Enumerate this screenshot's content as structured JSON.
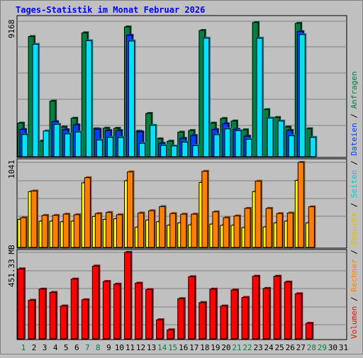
{
  "title": "Tages-Statistik im Monat Februar 2026",
  "colors": {
    "title": "#0000ff",
    "background": "#c0c0c0",
    "grid": "#7f7f7f",
    "anfragen": "#008040",
    "dateien": "#0040ff",
    "seiten": "#00e0ff",
    "besuche": "#ffff00",
    "rechner": "#ff8000",
    "volumen": "#ff0000",
    "weekend_label": "#008040",
    "weekday_label": "#000000"
  },
  "right_legend": {
    "sep": "/",
    "items": [
      {
        "key": "volumen",
        "label": "Volumen",
        "color": "#ff0000"
      },
      {
        "key": "rechner",
        "label": "Rechner",
        "color": "#ff8000"
      },
      {
        "key": "besuche",
        "label": "Besuche",
        "color": "#e0c000"
      },
      {
        "key": "seiten",
        "label": "Seiten",
        "color": "#00c8e0"
      },
      {
        "key": "dateien",
        "label": "Dateien",
        "color": "#0040ff"
      },
      {
        "key": "anfragen",
        "label": "Anfragen",
        "color": "#008040"
      }
    ]
  },
  "chart_data": {
    "type": "bar",
    "title": "Tages-Statistik im Monat Februar 2026",
    "categories": [
      "1",
      "2",
      "3",
      "4",
      "5",
      "6",
      "7",
      "8",
      "9",
      "10",
      "11",
      "12",
      "13",
      "14",
      "15",
      "16",
      "17",
      "18",
      "19",
      "20",
      "21",
      "22",
      "23",
      "24",
      "25",
      "26",
      "27",
      "28",
      "29",
      "30",
      "31"
    ],
    "weekend_days": [
      "1",
      "7",
      "8",
      "14",
      "15",
      "21",
      "22",
      "28",
      "29"
    ],
    "grid": true,
    "panels": [
      {
        "name": "hits",
        "max_label": "9168",
        "ylim": [
          0,
          9168
        ],
        "series": [
          {
            "name": "Anfragen",
            "key": "anfragen",
            "values": [
              2260,
              8090,
              1050,
              3740,
              2000,
              2590,
              8340,
              1880,
              1920,
              1910,
              8740,
              1710,
              2910,
              1200,
              1040,
              1650,
              1760,
              8500,
              2260,
              2570,
              2400,
              1810,
              9030,
              3170,
              2640,
              2000,
              8980,
              1880,
              null,
              null,
              null
            ]
          },
          {
            "name": "Dateien",
            "key": "dateien",
            "values": [
              1840,
              null,
              null,
              2360,
              1820,
              2140,
              null,
              1850,
              1760,
              1760,
              8170,
              1670,
              null,
              900,
              null,
              1230,
              1420,
              null,
              1830,
              2220,
              1840,
              1380,
              null,
              null,
              null,
              1770,
              8420,
              null,
              null,
              null,
              null
            ]
          },
          {
            "name": "Seiten",
            "key": "seiten",
            "values": [
              1490,
              7570,
              1730,
              2180,
              1530,
              1660,
              7810,
              1120,
              1300,
              1290,
              7790,
              900,
              2110,
              760,
              720,
              980,
              740,
              7980,
              1480,
              1870,
              1750,
              1170,
              7980,
              2600,
              2400,
              1410,
              8220,
              1300,
              null,
              null,
              null
            ]
          }
        ]
      },
      {
        "name": "visits",
        "max_label": "1041",
        "ylim": [
          0,
          1041
        ],
        "series": [
          {
            "name": "Besuche",
            "key": "besuche",
            "values": [
              343,
              683,
              321,
              321,
              314,
              321,
              790,
              378,
              343,
              350,
              815,
              247,
              335,
              314,
              271,
              300,
              276,
              794,
              285,
              271,
              271,
              242,
              683,
              250,
              300,
              321,
              820,
              300,
              null,
              null,
              null
            ]
          },
          {
            "name": "Rechner",
            "key": "rechner",
            "values": [
              364,
              690,
              392,
              392,
              407,
              400,
              853,
              414,
              428,
              400,
              924,
              421,
              449,
              499,
              414,
              407,
              407,
              931,
              435,
              364,
              385,
              478,
              810,
              478,
              414,
              421,
              1041,
              497,
              null,
              null,
              null
            ]
          }
        ]
      },
      {
        "name": "volume",
        "max_label": "451.33 MB",
        "ylim": [
          0,
          451.33
        ],
        "series": [
          {
            "name": "Volumen",
            "key": "volumen",
            "values": [
              365.2,
              201.4,
              259.5,
              242.2,
              171.4,
              311.9,
              204.0,
              379.8,
              299.5,
              285.6,
              451.3,
              290.5,
              257.2,
              99.6,
              47.1,
              209.6,
              324.2,
              189.5,
              259.5,
              171.4,
              254.8,
              216.1,
              326.7,
              263.2,
              326.7,
              296.6,
              235.3,
              81.1,
              null,
              null,
              null
            ]
          }
        ]
      }
    ]
  }
}
